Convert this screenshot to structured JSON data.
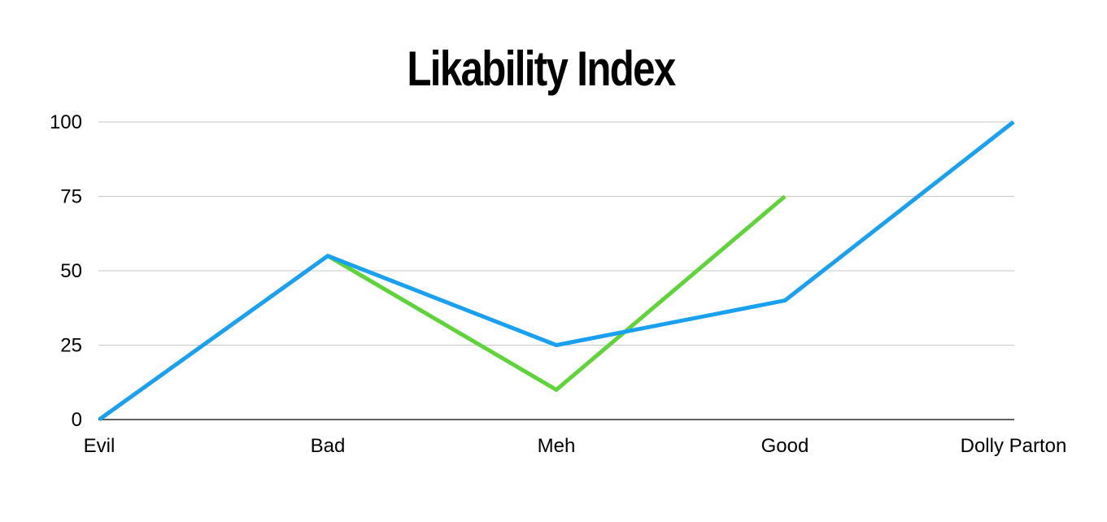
{
  "chart_data": {
    "type": "line",
    "title": "Likability Index",
    "xlabel": "",
    "ylabel": "",
    "categories": [
      "Evil",
      "Bad",
      "Meh",
      "Good",
      "Dolly Parton"
    ],
    "ylim": [
      0,
      100
    ],
    "yticks": [
      0,
      25,
      50,
      75,
      100
    ],
    "grid": true,
    "legend": "none",
    "series": [
      {
        "color": "#1aa0f0",
        "values": [
          0,
          55,
          25,
          40,
          100
        ]
      },
      {
        "color": "#5fd43a",
        "values": [
          null,
          55,
          10,
          75,
          null
        ]
      }
    ]
  }
}
